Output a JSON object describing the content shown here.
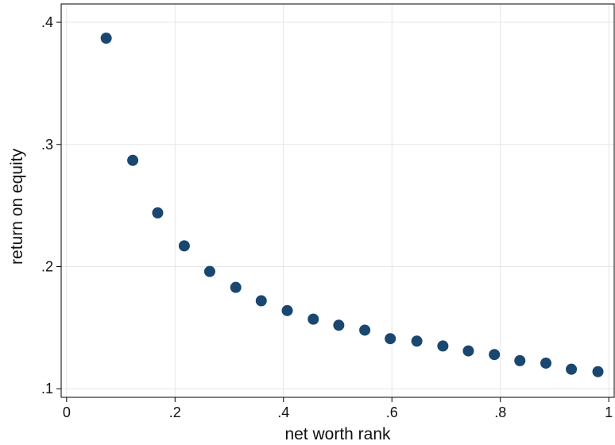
{
  "chart_data": {
    "type": "scatter",
    "x_label": "net worth rank",
    "y_label": "return on equity",
    "x": [
      0.073,
      0.122,
      0.168,
      0.217,
      0.264,
      0.312,
      0.359,
      0.407,
      0.455,
      0.502,
      0.55,
      0.597,
      0.646,
      0.694,
      0.741,
      0.789,
      0.836,
      0.884,
      0.931,
      0.98
    ],
    "values": [
      0.387,
      0.287,
      0.244,
      0.217,
      0.196,
      0.183,
      0.172,
      0.164,
      0.157,
      0.152,
      0.148,
      0.141,
      0.139,
      0.135,
      0.131,
      0.128,
      0.123,
      0.121,
      0.116,
      0.114
    ],
    "color": "#1a476f",
    "xlim": [
      -0.01,
      1.01
    ],
    "ylim": [
      0.093,
      0.415
    ],
    "xticks": [
      0,
      {
        "value": 0.2,
        "label": ".2"
      },
      {
        "value": 0.4,
        "label": ".4"
      },
      {
        "value": 0.6,
        "label": ".6"
      },
      {
        "value": 0.8,
        "label": ".8"
      },
      1
    ],
    "yticks": [
      {
        "value": 0.1,
        "label": ".1"
      },
      {
        "value": 0.2,
        "label": ".2"
      },
      {
        "value": 0.3,
        "label": ".3"
      },
      {
        "value": 0.4,
        "label": ".4"
      }
    ],
    "grid": true
  }
}
